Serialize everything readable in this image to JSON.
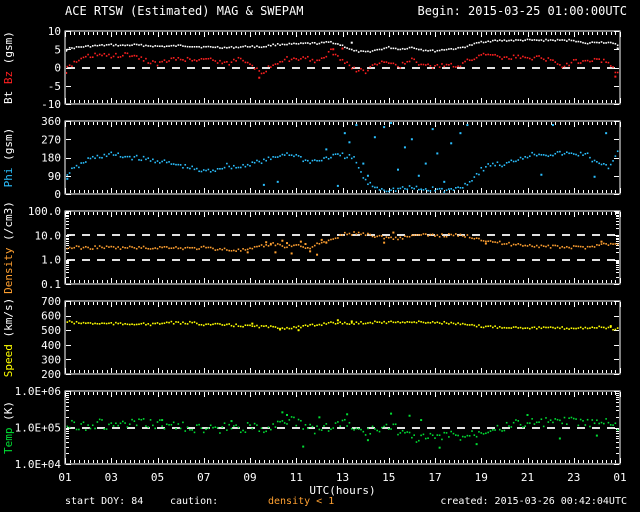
{
  "header": {
    "title": "ACE RTSW (Estimated) MAG & SWEPAM",
    "begin": "Begin: 2015-03-25 01:00:00UTC"
  },
  "footer": {
    "start_doy": "start DOY: 84",
    "caution": "caution:",
    "density_note": "density < 1",
    "created": "created: 2015-03-26 00:42:04UTC"
  },
  "colors": {
    "background": "#000000",
    "frame": "#ffffff",
    "bt": "#ffffff",
    "bz": "#ff2020",
    "phi": "#2bc0ff",
    "density": "#ffa030",
    "speed": "#ffff00",
    "temp": "#00dd33",
    "footer_warning": "#ffa030"
  },
  "chart_data": {
    "type": "scatter",
    "x_axis": {
      "label": "UTC(hours)",
      "range": [
        1,
        25
      ],
      "tick_hours": [
        1,
        3,
        5,
        7,
        9,
        11,
        13,
        15,
        17,
        19,
        21,
        23,
        25
      ],
      "tick_labels": [
        "01",
        "03",
        "05",
        "07",
        "09",
        "11",
        "13",
        "15",
        "17",
        "19",
        "21",
        "23",
        "01"
      ]
    },
    "panels": [
      {
        "id": "mag",
        "ylabel_parts": [
          {
            "text": "Bt",
            "color": "#ffffff"
          },
          {
            "text": "Bz",
            "color": "#ff2020"
          },
          {
            "text": "(gsm)",
            "color": "#ffffff"
          }
        ],
        "scale": "linear",
        "ylim": [
          -10,
          10
        ],
        "yticks": [
          {
            "v": 10,
            "label": "10"
          },
          {
            "v": 5,
            "label": "5"
          },
          {
            "v": 0,
            "label": "0"
          },
          {
            "v": -5,
            "label": "-5"
          },
          {
            "v": -10,
            "label": "-10"
          }
        ],
        "dashed": [
          0
        ],
        "series": [
          {
            "name": "Bt",
            "color": "#ffffff",
            "start": 1,
            "step": 0.5,
            "values": [
              5.0,
              5.5,
              5.8,
              6.0,
              6.2,
              6.0,
              6.2,
              6.0,
              5.8,
              5.8,
              6.0,
              5.8,
              5.6,
              5.6,
              5.4,
              5.6,
              5.8,
              5.6,
              6.2,
              6.4,
              6.4,
              6.6,
              6.6,
              7.0,
              6.0,
              4.5,
              4.2,
              4.8,
              5.5,
              5.0,
              5.5,
              4.8,
              4.5,
              5.0,
              5.2,
              6.0,
              7.0,
              7.3,
              7.4,
              7.4,
              7.5,
              7.4,
              7.5,
              7.4,
              7.5,
              6.5,
              7.0,
              6.8,
              6.0
            ],
            "extra_points": [
              [
                1.05,
                4.6
              ],
              [
                13.4,
                6.8
              ],
              [
                24.9,
                5.2
              ]
            ]
          },
          {
            "name": "Bz",
            "color": "#ff2020",
            "start": 1,
            "step": 0.5,
            "values": [
              -0.5,
              1.5,
              3.0,
              3.5,
              3.0,
              3.5,
              3.0,
              2.0,
              1.0,
              2.0,
              2.5,
              2.0,
              2.5,
              2.0,
              1.0,
              2.5,
              1.5,
              -2.0,
              1.0,
              2.5,
              2.0,
              2.5,
              1.5,
              4.5,
              2.0,
              -0.5,
              -1.0,
              1.0,
              1.5,
              0.5,
              2.0,
              0.5,
              0.0,
              1.0,
              0.5,
              2.0,
              3.5,
              4.0,
              2.5,
              3.0,
              2.5,
              3.0,
              2.0,
              0.5,
              1.5,
              2.0,
              2.5,
              1.0,
              -2.0
            ],
            "extra_points": [
              [
                9.4,
                -2.8
              ],
              [
                13.0,
                5.2
              ],
              [
                1.05,
                -1.5
              ],
              [
                24.8,
                -2.5
              ],
              [
                12.6,
                5.0
              ]
            ]
          }
        ]
      },
      {
        "id": "phi",
        "ylabel_parts": [
          {
            "text": "Phi",
            "color": "#2bc0ff"
          },
          {
            "text": "(gsm)",
            "color": "#ffffff"
          }
        ],
        "scale": "linear",
        "ylim": [
          0,
          360
        ],
        "yticks": [
          {
            "v": 360,
            "label": "360"
          },
          {
            "v": 270,
            "label": "270"
          },
          {
            "v": 180,
            "label": "180"
          },
          {
            "v": 90,
            "label": "90"
          },
          {
            "v": 0,
            "label": "0"
          }
        ],
        "dashed": [],
        "wrap": 150,
        "series": [
          {
            "name": "Phi",
            "color": "#2bc0ff",
            "start": 1,
            "step": 0.5,
            "values": [
              95,
              130,
              170,
              185,
              195,
              185,
              180,
              170,
              165,
              150,
              140,
              125,
              110,
              120,
              140,
              130,
              150,
              160,
              175,
              200,
              190,
              160,
              165,
              185,
              190,
              175,
              60,
              30,
              20,
              25,
              30,
              20,
              25,
              15,
              30,
              60,
              120,
              150,
              140,
              170,
              190,
              200,
              195,
              200,
              195,
              200,
              150,
              130,
              230
            ],
            "extra_points": [
              [
                12.8,
                40
              ],
              [
                13.1,
                300
              ],
              [
                13.3,
                255
              ],
              [
                13.6,
                340
              ],
              [
                13.9,
                150
              ],
              [
                14.1,
                90
              ],
              [
                14.4,
                280
              ],
              [
                14.8,
                330
              ],
              [
                15.1,
                350
              ],
              [
                15.4,
                120
              ],
              [
                15.7,
                230
              ],
              [
                16.0,
                270
              ],
              [
                16.3,
                90
              ],
              [
                16.6,
                150
              ],
              [
                16.9,
                320
              ],
              [
                17.1,
                200
              ],
              [
                17.4,
                60
              ],
              [
                17.7,
                250
              ],
              [
                18.1,
                300
              ],
              [
                18.4,
                340
              ],
              [
                9.6,
                45
              ],
              [
                10.2,
                60
              ],
              [
                21.6,
                95
              ],
              [
                22.1,
                340
              ],
              [
                23.9,
                85
              ],
              [
                24.4,
                300
              ],
              [
                1.1,
                75
              ],
              [
                12.3,
                220
              ]
            ]
          }
        ]
      },
      {
        "id": "density",
        "ylabel_parts": [
          {
            "text": "Density",
            "color": "#ffa030"
          },
          {
            "text": "(/cm3)",
            "color": "#ffffff"
          }
        ],
        "scale": "log",
        "ylim": [
          0.1,
          100
        ],
        "yticks": [
          {
            "v": 100,
            "label": "100.0"
          },
          {
            "v": 10,
            "label": "10.0"
          },
          {
            "v": 1,
            "label": "1.0"
          },
          {
            "v": 0.1,
            "label": "0.1"
          }
        ],
        "dashed": [
          10,
          1
        ],
        "series": [
          {
            "name": "Density",
            "color": "#ffa030",
            "start": 1,
            "step": 0.5,
            "values": [
              3.0,
              3.2,
              3.0,
              3.3,
              3.1,
              3.0,
              3.2,
              3.0,
              3.1,
              3.3,
              3.0,
              2.9,
              3.1,
              2.8,
              2.6,
              2.4,
              2.6,
              3.5,
              4.5,
              3.5,
              4.0,
              3.0,
              4.5,
              6.0,
              11.0,
              12.0,
              11.5,
              9.0,
              8.0,
              7.5,
              10.0,
              10.0,
              10.0,
              10.0,
              10.0,
              9.0,
              7.0,
              5.5,
              4.5,
              4.2,
              4.0,
              3.6,
              3.4,
              3.3,
              3.2,
              3.2,
              4.0,
              4.5,
              3.8
            ],
            "extra_points": [
              [
                9.7,
                5.2
              ],
              [
                9.9,
                4.2
              ],
              [
                10.1,
                2.0
              ],
              [
                10.4,
                6.0
              ],
              [
                10.6,
                4.8
              ],
              [
                10.8,
                1.8
              ],
              [
                11.2,
                5.5
              ],
              [
                11.4,
                4.4
              ],
              [
                11.6,
                2.2
              ],
              [
                11.9,
                1.6
              ],
              [
                12.1,
                6.5
              ],
              [
                12.3,
                5.0
              ],
              [
                14.8,
                5.0
              ],
              [
                15.2,
                13.0
              ],
              [
                8.9,
                2.0
              ],
              [
                19.2,
                4.6
              ],
              [
                24.2,
                5.5
              ]
            ]
          }
        ]
      },
      {
        "id": "speed",
        "ylabel_parts": [
          {
            "text": "Speed",
            "color": "#ffff00"
          },
          {
            "text": "(km/s)",
            "color": "#ffffff"
          }
        ],
        "scale": "linear",
        "ylim": [
          200,
          700
        ],
        "yticks": [
          {
            "v": 700,
            "label": "700"
          },
          {
            "v": 600,
            "label": "600"
          },
          {
            "v": 500,
            "label": "500"
          },
          {
            "v": 400,
            "label": "400"
          },
          {
            "v": 300,
            "label": "300"
          },
          {
            "v": 200,
            "label": "200"
          }
        ],
        "dashed": [],
        "series": [
          {
            "name": "Speed",
            "color": "#ffff00",
            "start": 1,
            "step": 0.5,
            "values": [
              560,
              550,
              548,
              545,
              545,
              542,
              545,
              540,
              542,
              555,
              545,
              552,
              540,
              538,
              535,
              532,
              528,
              525,
              520,
              515,
              520,
              528,
              538,
              555,
              545,
              548,
              552,
              556,
              553,
              558,
              554,
              555,
              553,
              550,
              542,
              532,
              526,
              523,
              521,
              519,
              518,
              516,
              515,
              514,
              514,
              516,
              520,
              515,
              505
            ],
            "extra_points": [
              [
                10.3,
                505
              ],
              [
                11.1,
                500
              ],
              [
                12.8,
                568
              ],
              [
                9.1,
                545
              ],
              [
                24.6,
                528
              ],
              [
                13.4,
                560
              ]
            ]
          }
        ]
      },
      {
        "id": "temp",
        "ylabel_parts": [
          {
            "text": "Temp",
            "color": "#00dd33"
          },
          {
            "text": "(K)",
            "color": "#ffffff"
          }
        ],
        "scale": "log",
        "ylim": [
          10000,
          1000000
        ],
        "yticks": [
          {
            "v": 1000000,
            "label": "1.0E+06"
          },
          {
            "v": 100000,
            "label": "1.0E+05"
          },
          {
            "v": 10000,
            "label": "1.0E+04"
          }
        ],
        "dashed": [
          100000
        ],
        "series": [
          {
            "name": "Temp",
            "color": "#00dd33",
            "start": 1,
            "step": 0.5,
            "values": [
              110000,
              120000,
              115000,
              125000,
              110000,
              120000,
              125000,
              130000,
              120000,
              115000,
              110000,
              100000,
              90000,
              85000,
              100000,
              95000,
              100000,
              90000,
              110000,
              180000,
              130000,
              100000,
              85000,
              110000,
              140000,
              100000,
              75000,
              90000,
              120000,
              80000,
              55000,
              52000,
              55000,
              60000,
              58000,
              65000,
              80000,
              110000,
              105000,
              120000,
              140000,
              130000,
              145000,
              140000,
              150000,
              135000,
              120000,
              140000,
              100000
            ],
            "extra_points": [
              [
                10.4,
                260000
              ],
              [
                10.6,
                220000
              ],
              [
                13.2,
                230000
              ],
              [
                12.0,
                190000
              ],
              [
                14.1,
                45000
              ],
              [
                15.9,
                210000
              ],
              [
                16.4,
                160000
              ],
              [
                11.3,
                30000
              ],
              [
                17.2,
                28000
              ],
              [
                21.0,
                220000
              ],
              [
                22.4,
                50000
              ],
              [
                24.0,
                60000
              ],
              [
                8.2,
                150000
              ],
              [
                5.2,
                160000
              ],
              [
                15.1,
                240000
              ],
              [
                18.8,
                35000
              ]
            ]
          }
        ]
      }
    ]
  }
}
